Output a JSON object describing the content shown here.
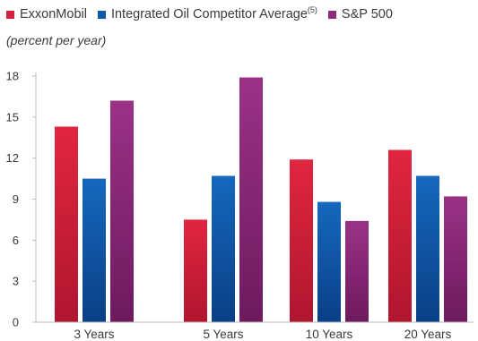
{
  "chart_data": {
    "type": "bar",
    "unit_note": "(percent per year)",
    "categories": [
      "3 Years",
      "5 Years",
      "10 Years",
      "20 Years"
    ],
    "series": [
      {
        "name": "ExxonMobil",
        "color": "#d4213d",
        "values": [
          14.3,
          7.5,
          11.9,
          12.6
        ]
      },
      {
        "name": "Integrated Oil Competitor Average",
        "name_sup": "(5)",
        "color": "#0f5aa8",
        "values": [
          10.5,
          10.7,
          8.8,
          10.7
        ]
      },
      {
        "name": "S&P 500",
        "color": "#8e2a7a",
        "values": [
          16.2,
          17.9,
          7.4,
          9.2
        ]
      }
    ],
    "yticks": [
      0,
      3,
      6,
      9,
      12,
      15,
      18
    ],
    "ylim": [
      0,
      18
    ],
    "legend_position": "top",
    "grid": false
  }
}
